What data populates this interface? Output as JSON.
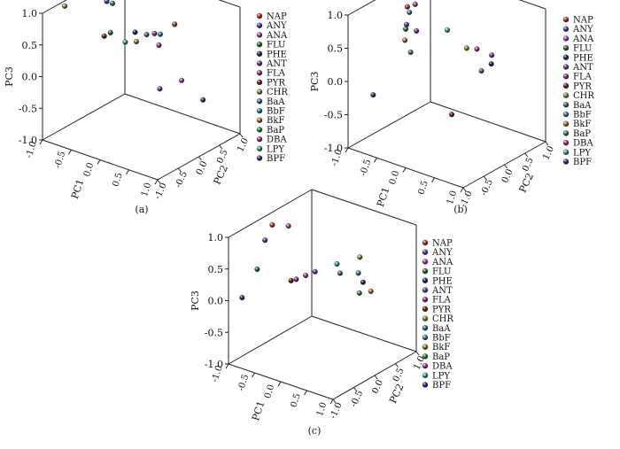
{
  "figure": {
    "panel_labels": [
      "(a)",
      "(b)",
      "(c)"
    ]
  },
  "legend": {
    "entries": [
      {
        "name": "NAP",
        "color": "#e53a2f"
      },
      {
        "name": "ANY",
        "color": "#5a50c8"
      },
      {
        "name": "ANA",
        "color": "#c94fd0"
      },
      {
        "name": "FLU",
        "color": "#2e8a3a"
      },
      {
        "name": "PHE",
        "color": "#2a2a7a"
      },
      {
        "name": "ANT",
        "color": "#8a3fc0"
      },
      {
        "name": "FLA",
        "color": "#b03aa8"
      },
      {
        "name": "PYR",
        "color": "#7a1f2a"
      },
      {
        "name": "CHR",
        "color": "#a8a040"
      },
      {
        "name": "BaA",
        "color": "#4a7ab0"
      },
      {
        "name": "BbF",
        "color": "#3a9ab8"
      },
      {
        "name": "BkF",
        "color": "#c88a30"
      },
      {
        "name": "BaP",
        "color": "#3aa050"
      },
      {
        "name": "DBA",
        "color": "#d040b0"
      },
      {
        "name": "LPY",
        "color": "#40c0c0"
      },
      {
        "name": "BPF",
        "color": "#3a3a9a"
      }
    ]
  },
  "chart_data": [
    {
      "type": "scatter3d",
      "panel": "(a)",
      "xlabel": "PC1",
      "ylabel": "PC2",
      "zlabel": "PC3",
      "xlim": [
        -1.0,
        1.0
      ],
      "ylim": [
        -1.0,
        1.0
      ],
      "zlim": [
        -1.0,
        1.0
      ],
      "x_ticks": [
        "-1.0",
        "-0.5",
        "0.0",
        "0.5",
        "1.0"
      ],
      "y_ticks": [
        "-1.0",
        "-0.5",
        "0.0",
        "0.5",
        "1.0"
      ],
      "z_ticks": [
        "-1.0",
        "-0.5",
        "0.0",
        "0.5",
        "1.0"
      ],
      "points": [
        {
          "label": "NAP",
          "pc1": -0.1,
          "pc2": 0.95,
          "pc3": 0.4
        },
        {
          "label": "ANY",
          "pc1": -0.6,
          "pc2": 0.0,
          "pc3": 0.95
        },
        {
          "label": "ANA",
          "pc1": 0.2,
          "pc2": 0.7,
          "pc3": -0.3
        },
        {
          "label": "FLU",
          "pc1": -0.75,
          "pc2": 0.3,
          "pc3": 0.3
        },
        {
          "label": "PHE",
          "pc1": -0.25,
          "pc2": 0.2,
          "pc3": 0.5
        },
        {
          "label": "ANT",
          "pc1": 0.25,
          "pc2": 0.1,
          "pc3": -0.2
        },
        {
          "label": "FLA",
          "pc1": -0.2,
          "pc2": 0.6,
          "pc3": 0.35
        },
        {
          "label": "PYR",
          "pc1": -0.75,
          "pc2": 0.15,
          "pc3": 0.3
        },
        {
          "label": "CHR",
          "pc1": -0.9,
          "pc2": -0.6,
          "pc3": 1.0
        },
        {
          "label": "BaA",
          "pc1": -0.3,
          "pc2": 0.55,
          "pc3": 0.32
        },
        {
          "label": "BbF",
          "pc1": -0.1,
          "pc2": 0.6,
          "pc3": 0.37
        },
        {
          "label": "BkF",
          "pc1": -0.3,
          "pc2": 0.3,
          "pc3": 0.3
        },
        {
          "label": "BaP",
          "pc1": -0.5,
          "pc2": 0.0,
          "pc3": 0.95
        },
        {
          "label": "DBA",
          "pc1": -0.05,
          "pc2": 0.5,
          "pc3": 0.25
        },
        {
          "label": "LPY",
          "pc1": -0.35,
          "pc2": 0.1,
          "pc3": 0.35
        },
        {
          "label": "BPF",
          "pc1": 0.5,
          "pc2": 0.8,
          "pc3": -0.55
        }
      ]
    },
    {
      "type": "scatter3d",
      "panel": "(b)",
      "xlabel": "PC1",
      "ylabel": "PC2",
      "zlabel": "PC3",
      "xlim": [
        -1.0,
        1.0
      ],
      "ylim": [
        -1.0,
        1.0
      ],
      "zlim": [
        -1.0,
        1.0
      ],
      "x_ticks": [
        "-1.0",
        "-0.5",
        "0.0",
        "0.5",
        "1.0"
      ],
      "y_ticks": [
        "-1.0",
        "-0.5",
        "0.0",
        "0.5",
        "1.0"
      ],
      "z_ticks": [
        "-1.0",
        "-0.5",
        "0.0",
        "0.5",
        "1.0"
      ],
      "points": [
        {
          "label": "NAP",
          "pc1": -0.65,
          "pc2": -0.05,
          "pc3": 0.9
        },
        {
          "label": "ANY",
          "pc1": -0.7,
          "pc2": 0.0,
          "pc3": 0.6
        },
        {
          "label": "ANA",
          "pc1": -0.55,
          "pc2": 0.0,
          "pc3": 0.95
        },
        {
          "label": "FLU",
          "pc1": -0.75,
          "pc2": 0.05,
          "pc3": 0.5
        },
        {
          "label": "PHE",
          "pc1": 0.2,
          "pc2": 0.8,
          "pc3": 0.0
        },
        {
          "label": "ANT",
          "pc1": 0.1,
          "pc2": 0.95,
          "pc3": 0.05
        },
        {
          "label": "FLA",
          "pc1": -0.6,
          "pc2": 0.1,
          "pc3": 0.5
        },
        {
          "label": "PYR",
          "pc1": 0.3,
          "pc2": -0.3,
          "pc3": -0.35
        },
        {
          "label": "CHR",
          "pc1": -0.05,
          "pc2": 0.55,
          "pc3": 0.25
        },
        {
          "label": "BaA",
          "pc1": 0.1,
          "pc2": 0.7,
          "pc3": -0.1
        },
        {
          "label": "BbF",
          "pc1": -0.65,
          "pc2": 0.0,
          "pc3": 0.8
        },
        {
          "label": "BkF",
          "pc1": -0.8,
          "pc2": 0.1,
          "pc3": 0.3
        },
        {
          "label": "BaP",
          "pc1": -0.7,
          "pc2": 0.1,
          "pc3": 0.15
        },
        {
          "label": "DBA",
          "pc1": -0.05,
          "pc2": 0.8,
          "pc3": 0.15
        },
        {
          "label": "LPY",
          "pc1": -0.35,
          "pc2": 0.5,
          "pc3": 0.45
        },
        {
          "label": "BPF",
          "pc1": -0.6,
          "pc2": -0.95,
          "pc3": -0.1
        }
      ]
    },
    {
      "type": "scatter3d",
      "panel": "(c)",
      "xlabel": "PC1",
      "ylabel": "PC2",
      "zlabel": "PC3",
      "xlim": [
        -1.0,
        1.0
      ],
      "ylim": [
        -1.0,
        1.0
      ],
      "zlim": [
        -1.0,
        1.0
      ],
      "x_ticks": [
        "-1.0",
        "-0.5",
        "0.0",
        "0.5",
        "1.0"
      ],
      "y_ticks": [
        "-1.0",
        "-0.5",
        "0.0",
        "0.5",
        "1.0"
      ],
      "z_ticks": [
        "-1.0",
        "-0.5",
        "0.0",
        "0.5",
        "1.0"
      ],
      "points": [
        {
          "label": "NAP",
          "pc1": -0.8,
          "pc2": -0.2,
          "pc3": 0.95
        },
        {
          "label": "ANY",
          "pc1": -0.7,
          "pc2": -0.5,
          "pc3": 0.85
        },
        {
          "label": "ANA",
          "pc1": -0.65,
          "pc2": 0.0,
          "pc3": 0.9
        },
        {
          "label": "FLU",
          "pc1": -0.85,
          "pc2": -0.5,
          "pc3": 0.35
        },
        {
          "label": "PHE",
          "pc1": 0.3,
          "pc2": 0.6,
          "pc3": 0.05
        },
        {
          "label": "ANT",
          "pc1": -0.3,
          "pc2": 0.2,
          "pc3": 0.2
        },
        {
          "label": "FLA",
          "pc1": -0.5,
          "pc2": 0.0,
          "pc3": 0.1
        },
        {
          "label": "PYR",
          "pc1": -0.6,
          "pc2": 0.0,
          "pc3": 0.05
        },
        {
          "label": "CHR",
          "pc1": 0.0,
          "pc2": 0.9,
          "pc3": 0.25
        },
        {
          "label": "BaA",
          "pc1": -0.1,
          "pc2": 0.55,
          "pc3": 0.1
        },
        {
          "label": "BbF",
          "pc1": 0.25,
          "pc2": 0.55,
          "pc3": 0.2
        },
        {
          "label": "BkF",
          "pc1": 0.25,
          "pc2": 0.85,
          "pc3": -0.2
        },
        {
          "label": "BaP",
          "pc1": 0.15,
          "pc2": 0.7,
          "pc3": -0.2
        },
        {
          "label": "DBA",
          "pc1": -0.4,
          "pc2": 0.1,
          "pc3": 0.15
        },
        {
          "label": "LPY",
          "pc1": -0.2,
          "pc2": 0.6,
          "pc3": 0.2
        },
        {
          "label": "BPF",
          "pc1": -0.9,
          "pc2": -0.8,
          "pc3": 0.0
        }
      ]
    }
  ]
}
